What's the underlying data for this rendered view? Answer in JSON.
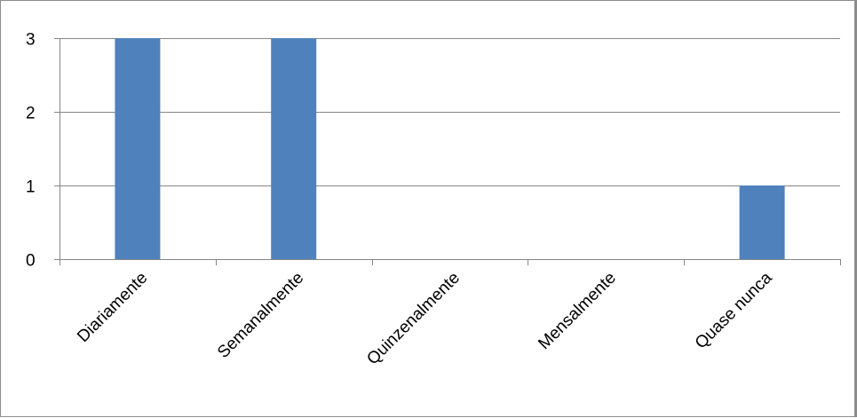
{
  "chart_data": {
    "type": "bar",
    "categories": [
      "Diariamente",
      "Semanalmente",
      "Quinzenalmente",
      "Mensalmente",
      "Quase nunca"
    ],
    "values": [
      3,
      3,
      0,
      0,
      1
    ],
    "ylim": [
      0,
      3
    ],
    "yticks": [
      "0",
      "1",
      "2",
      "3"
    ],
    "grid": true,
    "legend": "none",
    "colors": {
      "bar": "#4f81bd",
      "grid": "#868686",
      "axis": "#868686"
    }
  }
}
